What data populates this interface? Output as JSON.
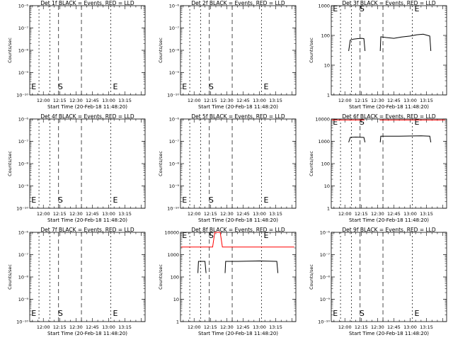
{
  "figure": {
    "background": "#ffffff",
    "foreground": "#000000"
  },
  "chart_data": [
    {
      "type": "line",
      "title": "Det 1f BLACK = Events, RED = LLD",
      "xlabel": "Start Time (20-Feb-18 11:48:20)",
      "ylabel": "Counts/sec",
      "y_scale": "log",
      "ylim": [
        1e-10,
        1e-06
      ],
      "y_ticks": [
        "10⁻¹⁰",
        "10⁻⁹",
        "10⁻⁸",
        "10⁻⁷",
        "10⁻⁶"
      ],
      "x_ticks": [
        "12:00",
        "12:15",
        "12:30",
        "12:45",
        "13:00",
        "13:15"
      ],
      "markers": [
        {
          "label": "E"
        },
        {
          "label": "S"
        },
        {
          "label": "E"
        }
      ],
      "series": []
    },
    {
      "type": "line",
      "title": "Det 2f BLACK = Events, RED = LLD",
      "xlabel": "Start Time (20-Feb-18 11:48:20)",
      "ylabel": "Counts/sec",
      "y_scale": "log",
      "ylim": [
        1e-10,
        1e-06
      ],
      "y_ticks": [
        "10⁻¹⁰",
        "10⁻⁹",
        "10⁻⁸",
        "10⁻⁷",
        "10⁻⁶"
      ],
      "x_ticks": [
        "12:00",
        "12:15",
        "12:30",
        "12:45",
        "13:00",
        "13:15"
      ],
      "markers": [
        {
          "label": "E"
        },
        {
          "label": "S"
        },
        {
          "label": "E"
        }
      ],
      "series": []
    },
    {
      "type": "line",
      "title": "Det 3f BLACK = Events, RED = LLD",
      "xlabel": "Start Time (20-Feb-18 11:48:20)",
      "ylabel": "Counts/sec",
      "y_scale": "log",
      "ylim": [
        1,
        1000
      ],
      "y_ticks": [
        "1",
        "10",
        "100",
        "1000"
      ],
      "x_ticks": [
        "12:00",
        "12:15",
        "12:30",
        "12:45",
        "13:00",
        "13:15"
      ],
      "markers": [
        {
          "label": "E"
        },
        {
          "label": "S"
        },
        {
          "label": "E"
        }
      ],
      "series": [
        {
          "color": "#000000",
          "segments": [
            [
              [
                3.5,
                30
              ],
              [
                5,
                70
              ],
              [
                8,
                75
              ],
              [
                12,
                78
              ],
              [
                15,
                80
              ],
              [
                17.5,
                78
              ],
              [
                18.5,
                30
              ]
            ],
            [
              [
                32.5,
                30
              ],
              [
                33,
                90
              ],
              [
                38,
                85
              ],
              [
                45,
                80
              ],
              [
                52,
                88
              ],
              [
                60,
                95
              ],
              [
                66,
                105
              ],
              [
                72,
                110
              ],
              [
                76,
                100
              ],
              [
                78,
                95
              ],
              [
                79,
                30
              ]
            ]
          ]
        }
      ]
    },
    {
      "type": "line",
      "title": "Det 4f BLACK = Events, RED = LLD",
      "xlabel": "Start Time (20-Feb-18 11:48:20)",
      "ylabel": "Counts/sec",
      "y_scale": "log",
      "ylim": [
        1e-10,
        1e-06
      ],
      "y_ticks": [
        "10⁻¹⁰",
        "10⁻⁹",
        "10⁻⁸",
        "10⁻⁷",
        "10⁻⁶"
      ],
      "x_ticks": [
        "12:00",
        "12:15",
        "12:30",
        "12:45",
        "13:00",
        "13:15"
      ],
      "markers": [
        {
          "label": "E"
        },
        {
          "label": "S"
        },
        {
          "label": "E"
        }
      ],
      "series": []
    },
    {
      "type": "line",
      "title": "Det 5f BLACK = Events, RED = LLD",
      "xlabel": "Start Time (20-Feb-18 11:48:20)",
      "ylabel": "Counts/sec",
      "y_scale": "log",
      "ylim": [
        1e-10,
        1e-06
      ],
      "y_ticks": [
        "10⁻¹⁰",
        "10⁻⁹",
        "10⁻⁸",
        "10⁻⁷",
        "10⁻⁶"
      ],
      "x_ticks": [
        "12:00",
        "12:15",
        "12:30",
        "12:45",
        "13:00",
        "13:15"
      ],
      "markers": [
        {
          "label": "E"
        },
        {
          "label": "S"
        },
        {
          "label": "E"
        }
      ],
      "series": []
    },
    {
      "type": "line",
      "title": "Det 6f BLACK = Events, RED = LLD",
      "xlabel": "Start Time (20-Feb-18 11:48:20)",
      "ylabel": "Counts/sec",
      "y_scale": "log",
      "ylim": [
        1,
        10000
      ],
      "y_ticks": [
        "1",
        "10",
        "100",
        "1000",
        "10000"
      ],
      "x_ticks": [
        "12:00",
        "12:15",
        "12:30",
        "12:45",
        "13:00",
        "13:15"
      ],
      "markers": [
        {
          "label": "E"
        },
        {
          "label": "S"
        },
        {
          "label": "E"
        }
      ],
      "series": [
        {
          "color": "#ff0000",
          "segments": [
            [
              [
                -12,
                9000
              ],
              [
                18,
                9000
              ]
            ],
            [
              [
                32,
                9000
              ],
              [
                92,
                9000
              ]
            ]
          ]
        },
        {
          "color": "#000000",
          "segments": [
            [
              [
                3.5,
                900
              ],
              [
                5,
                1500
              ],
              [
                10,
                1550
              ],
              [
                17.5,
                1500
              ],
              [
                18.5,
                900
              ]
            ],
            [
              [
                32.5,
                900
              ],
              [
                33,
                1700
              ],
              [
                50,
                1700
              ],
              [
                70,
                1750
              ],
              [
                78,
                1700
              ],
              [
                79,
                900
              ]
            ]
          ]
        }
      ]
    },
    {
      "type": "line",
      "title": "Det 7f BLACK = Events, RED = LLD",
      "xlabel": "Start Time (20-Feb-18 11:48:20)",
      "ylabel": "Counts/sec",
      "y_scale": "log",
      "ylim": [
        1e-10,
        1e-06
      ],
      "y_ticks": [
        "10⁻¹⁰",
        "10⁻⁹",
        "10⁻⁸",
        "10⁻⁷",
        "10⁻⁶"
      ],
      "x_ticks": [
        "12:00",
        "12:15",
        "12:30",
        "12:45",
        "13:00",
        "13:15"
      ],
      "markers": [
        {
          "label": "E"
        },
        {
          "label": "S"
        },
        {
          "label": "E"
        }
      ],
      "series": []
    },
    {
      "type": "line",
      "title": "Det 8f BLACK = Events, RED = LLD",
      "xlabel": "Start Time (20-Feb-18 11:48:20)",
      "ylabel": "Counts/sec",
      "y_scale": "log",
      "ylim": [
        1,
        10000
      ],
      "y_ticks": [
        "1",
        "10",
        "100",
        "1000",
        "10000"
      ],
      "x_ticks": [
        "12:00",
        "12:15",
        "12:30",
        "12:45",
        "13:00",
        "13:15"
      ],
      "markers": [
        {
          "label": "E"
        },
        {
          "label": "S"
        },
        {
          "label": "E"
        }
      ],
      "series": [
        {
          "color": "#ff0000",
          "segments": [
            [
              [
                -12,
                2200
              ],
              [
                17,
                2200
              ],
              [
                19,
                10000
              ],
              [
                22,
                12000
              ],
              [
                24,
                10000
              ],
              [
                26,
                2200
              ],
              [
                92,
                2200
              ]
            ]
          ]
        },
        {
          "color": "#000000",
          "segments": [
            [
              [
                3.5,
                150
              ],
              [
                4,
                500
              ],
              [
                10,
                500
              ],
              [
                11,
                150
              ]
            ],
            [
              [
                28.5,
                150
              ],
              [
                29,
                500
              ],
              [
                40,
                500
              ],
              [
                60,
                520
              ],
              [
                76,
                500
              ],
              [
                77,
                150
              ]
            ]
          ]
        }
      ]
    },
    {
      "type": "line",
      "title": "Det 9f BLACK = Events, RED = LLD",
      "xlabel": "Start Time (20-Feb-18 11:48:20)",
      "ylabel": "Counts/sec",
      "y_scale": "log",
      "ylim": [
        1e-10,
        1e-06
      ],
      "y_ticks": [
        "10⁻¹⁰",
        "10⁻⁹",
        "10⁻⁸",
        "10⁻⁷",
        "10⁻⁶"
      ],
      "x_ticks": [
        "12:00",
        "12:15",
        "12:30",
        "12:45",
        "13:00",
        "13:15"
      ],
      "markers": [
        {
          "label": "E"
        },
        {
          "label": "S"
        },
        {
          "label": "E"
        }
      ],
      "series": []
    }
  ]
}
